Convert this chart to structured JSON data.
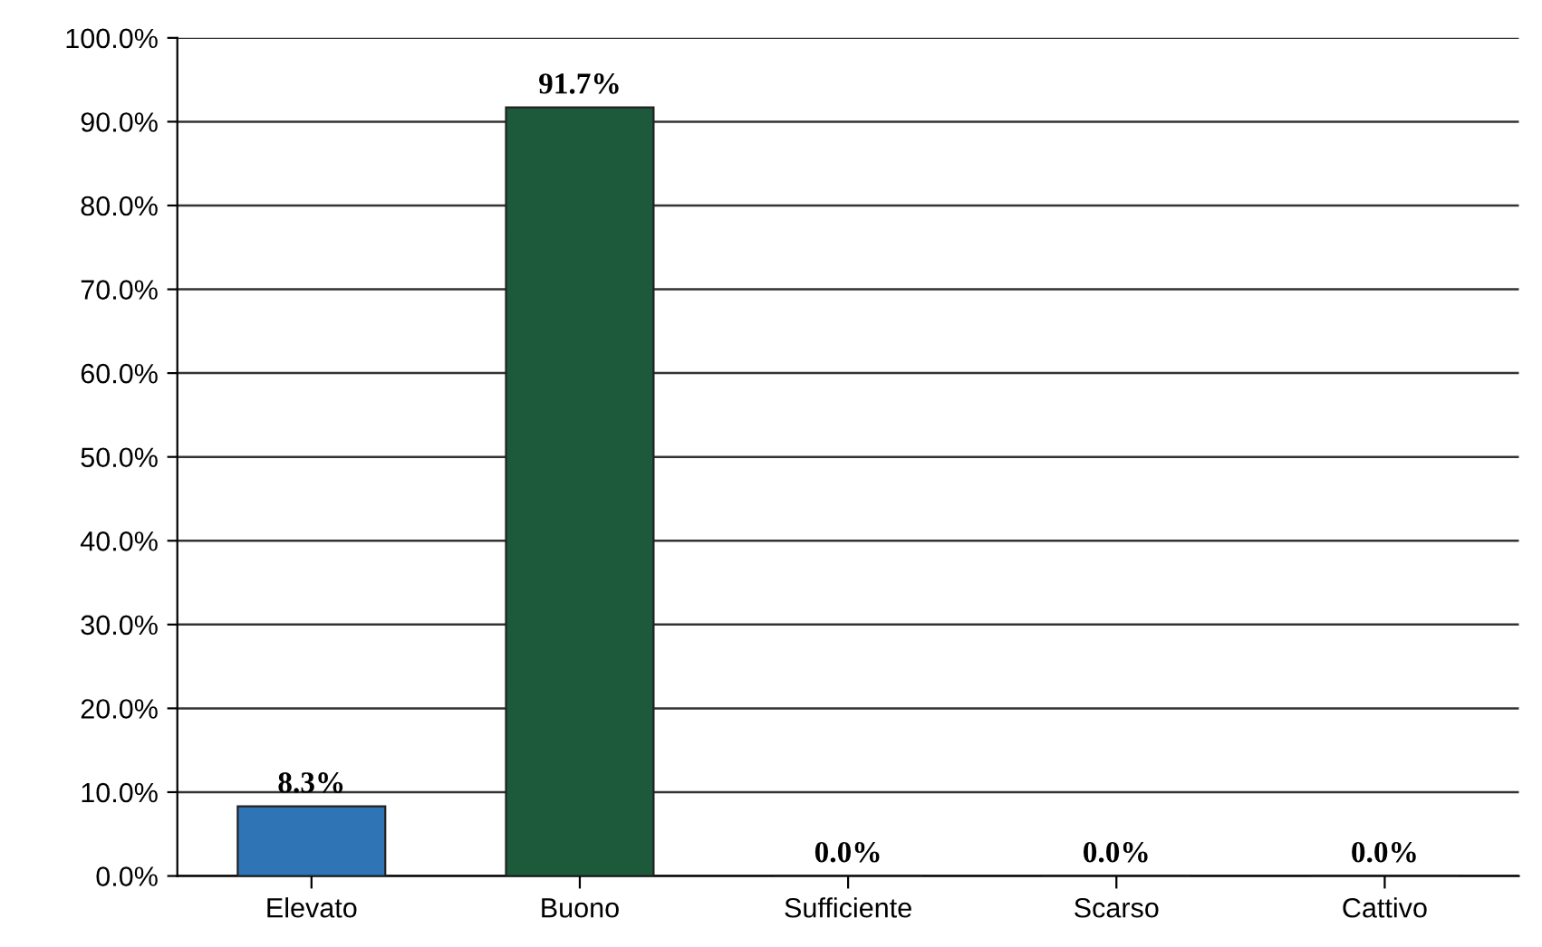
{
  "chart_data": {
    "type": "bar",
    "categories": [
      "Elevato",
      "Buono",
      "Sufficiente",
      "Scarso",
      "Cattivo"
    ],
    "values": [
      8.3,
      91.7,
      0.0,
      0.0,
      0.0
    ],
    "colors": [
      "#2f75b5",
      "#1d5a3c",
      "#222222",
      "#222222",
      "#222222"
    ],
    "value_labels": [
      "8.3%",
      "91.7%",
      "0.0%",
      "0.0%",
      "0.0%"
    ],
    "ylim": [
      0,
      100
    ],
    "yticks": [
      {
        "value": 0,
        "label": "0.0%"
      },
      {
        "value": 10,
        "label": "10.0%"
      },
      {
        "value": 20,
        "label": "20.0%"
      },
      {
        "value": 30,
        "label": "30.0%"
      },
      {
        "value": 40,
        "label": "40.0%"
      },
      {
        "value": 50,
        "label": "50.0%"
      },
      {
        "value": 60,
        "label": "60.0%"
      },
      {
        "value": 70,
        "label": "70.0%"
      },
      {
        "value": 80,
        "label": "80.0%"
      },
      {
        "value": 90,
        "label": "90.0%"
      },
      {
        "value": 100,
        "label": "100.0%"
      }
    ],
    "grid": "y"
  }
}
